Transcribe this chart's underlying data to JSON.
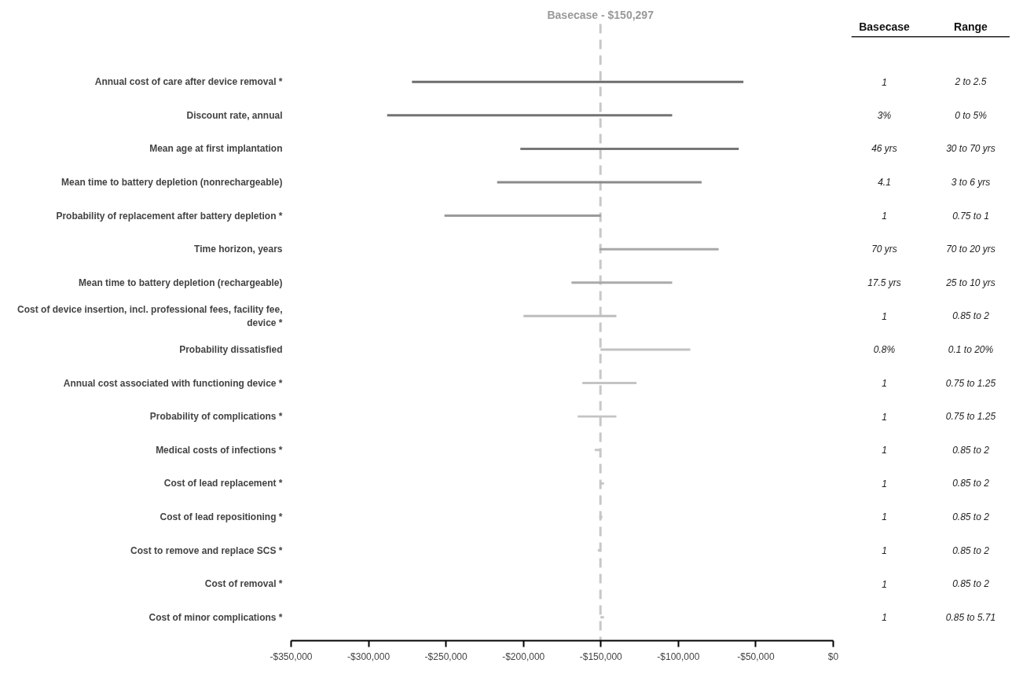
{
  "chart_data": {
    "type": "bar",
    "orientation": "horizontal",
    "categories": [
      "Annual cost of care after device removal *",
      "Discount rate, annual",
      "Mean age at first implantation",
      "Mean time to battery depletion (nonrechargeable)",
      "Probability of replacement after battery depletion *",
      "Time horizon, years",
      "Mean time to battery depletion (rechargeable)",
      "Cost of device insertion, incl. professional fees, facility fee, device *",
      "Probability dissatisfied",
      "Annual cost associated with functioning device *",
      "Probability of complications *",
      "Medical costs of infections *",
      "Cost of lead replacement *",
      "Cost of lead repositioning *",
      "Cost to remove and replace SCS *",
      "Cost of removal *",
      "Cost of minor complications *"
    ],
    "base": [
      -272000,
      -288000,
      -202000,
      -217000,
      -251000,
      -151000,
      -169000,
      -200000,
      -150297,
      -162000,
      -165000,
      -154000,
      -150297,
      -151000,
      -152000,
      null,
      -150297
    ],
    "values": [
      214000,
      184000,
      141000,
      132000,
      101000,
      77000,
      65000,
      60000,
      58000,
      35000,
      25000,
      3700,
      2300,
      2000,
      1700,
      null,
      2300
    ],
    "colors": [
      "#6e6e6e",
      "#737373",
      "#777777",
      "#8a8a8a",
      "#9a9a9a",
      "#a8a8a8",
      "#aaaaaa",
      "#bdbdbd",
      "#c2c2c2",
      "#c4c4c4",
      "#c4c4c4",
      "#c6c6c6",
      "#c6c6c6",
      "#c6c6c6",
      "#c6c6c6",
      "#c6c6c6",
      "#c6c6c6"
    ],
    "xlim": [
      -350000,
      0
    ],
    "xticks": [
      {
        "value": -350000,
        "label": "-$350,000"
      },
      {
        "value": -300000,
        "label": "-$300,000"
      },
      {
        "value": -250000,
        "label": "-$250,000"
      },
      {
        "value": -200000,
        "label": "-$200,000"
      },
      {
        "value": -150000,
        "label": "-$150,000"
      },
      {
        "value": -100000,
        "label": "-$100,000"
      },
      {
        "value": -50000,
        "label": "-$50,000"
      },
      {
        "value": 0,
        "label": "$0"
      }
    ],
    "ref_lines": [
      {
        "axis": "x",
        "value": -150297,
        "label": "Basecase - $150,297",
        "color": "#c8c8c8",
        "line_style": "dashed"
      }
    ],
    "grid": false,
    "annotations": [
      "Basecase",
      "Range",
      "1",
      "2 to 2.5",
      "3%",
      "0 to 5%",
      "46 yrs",
      "30 to 70 yrs",
      "4.1",
      "3 to 6 yrs",
      "1",
      "0.75 to 1",
      "70 yrs",
      "70 to 20 yrs",
      "17.5 yrs",
      "25 to 10 yrs",
      "1",
      "0.85 to 2",
      "0.8%",
      "0.1 to 20%",
      "1",
      "0.75 to 1.25",
      "1",
      "0.75 to 1.25",
      "1",
      "0.85 to 2",
      "1",
      "0.85 to 2",
      "1",
      "0.85 to 2",
      "1",
      "0.85 to 2",
      "1",
      "0.85 to 2",
      "1",
      "0.85 to 5.71"
    ]
  }
}
